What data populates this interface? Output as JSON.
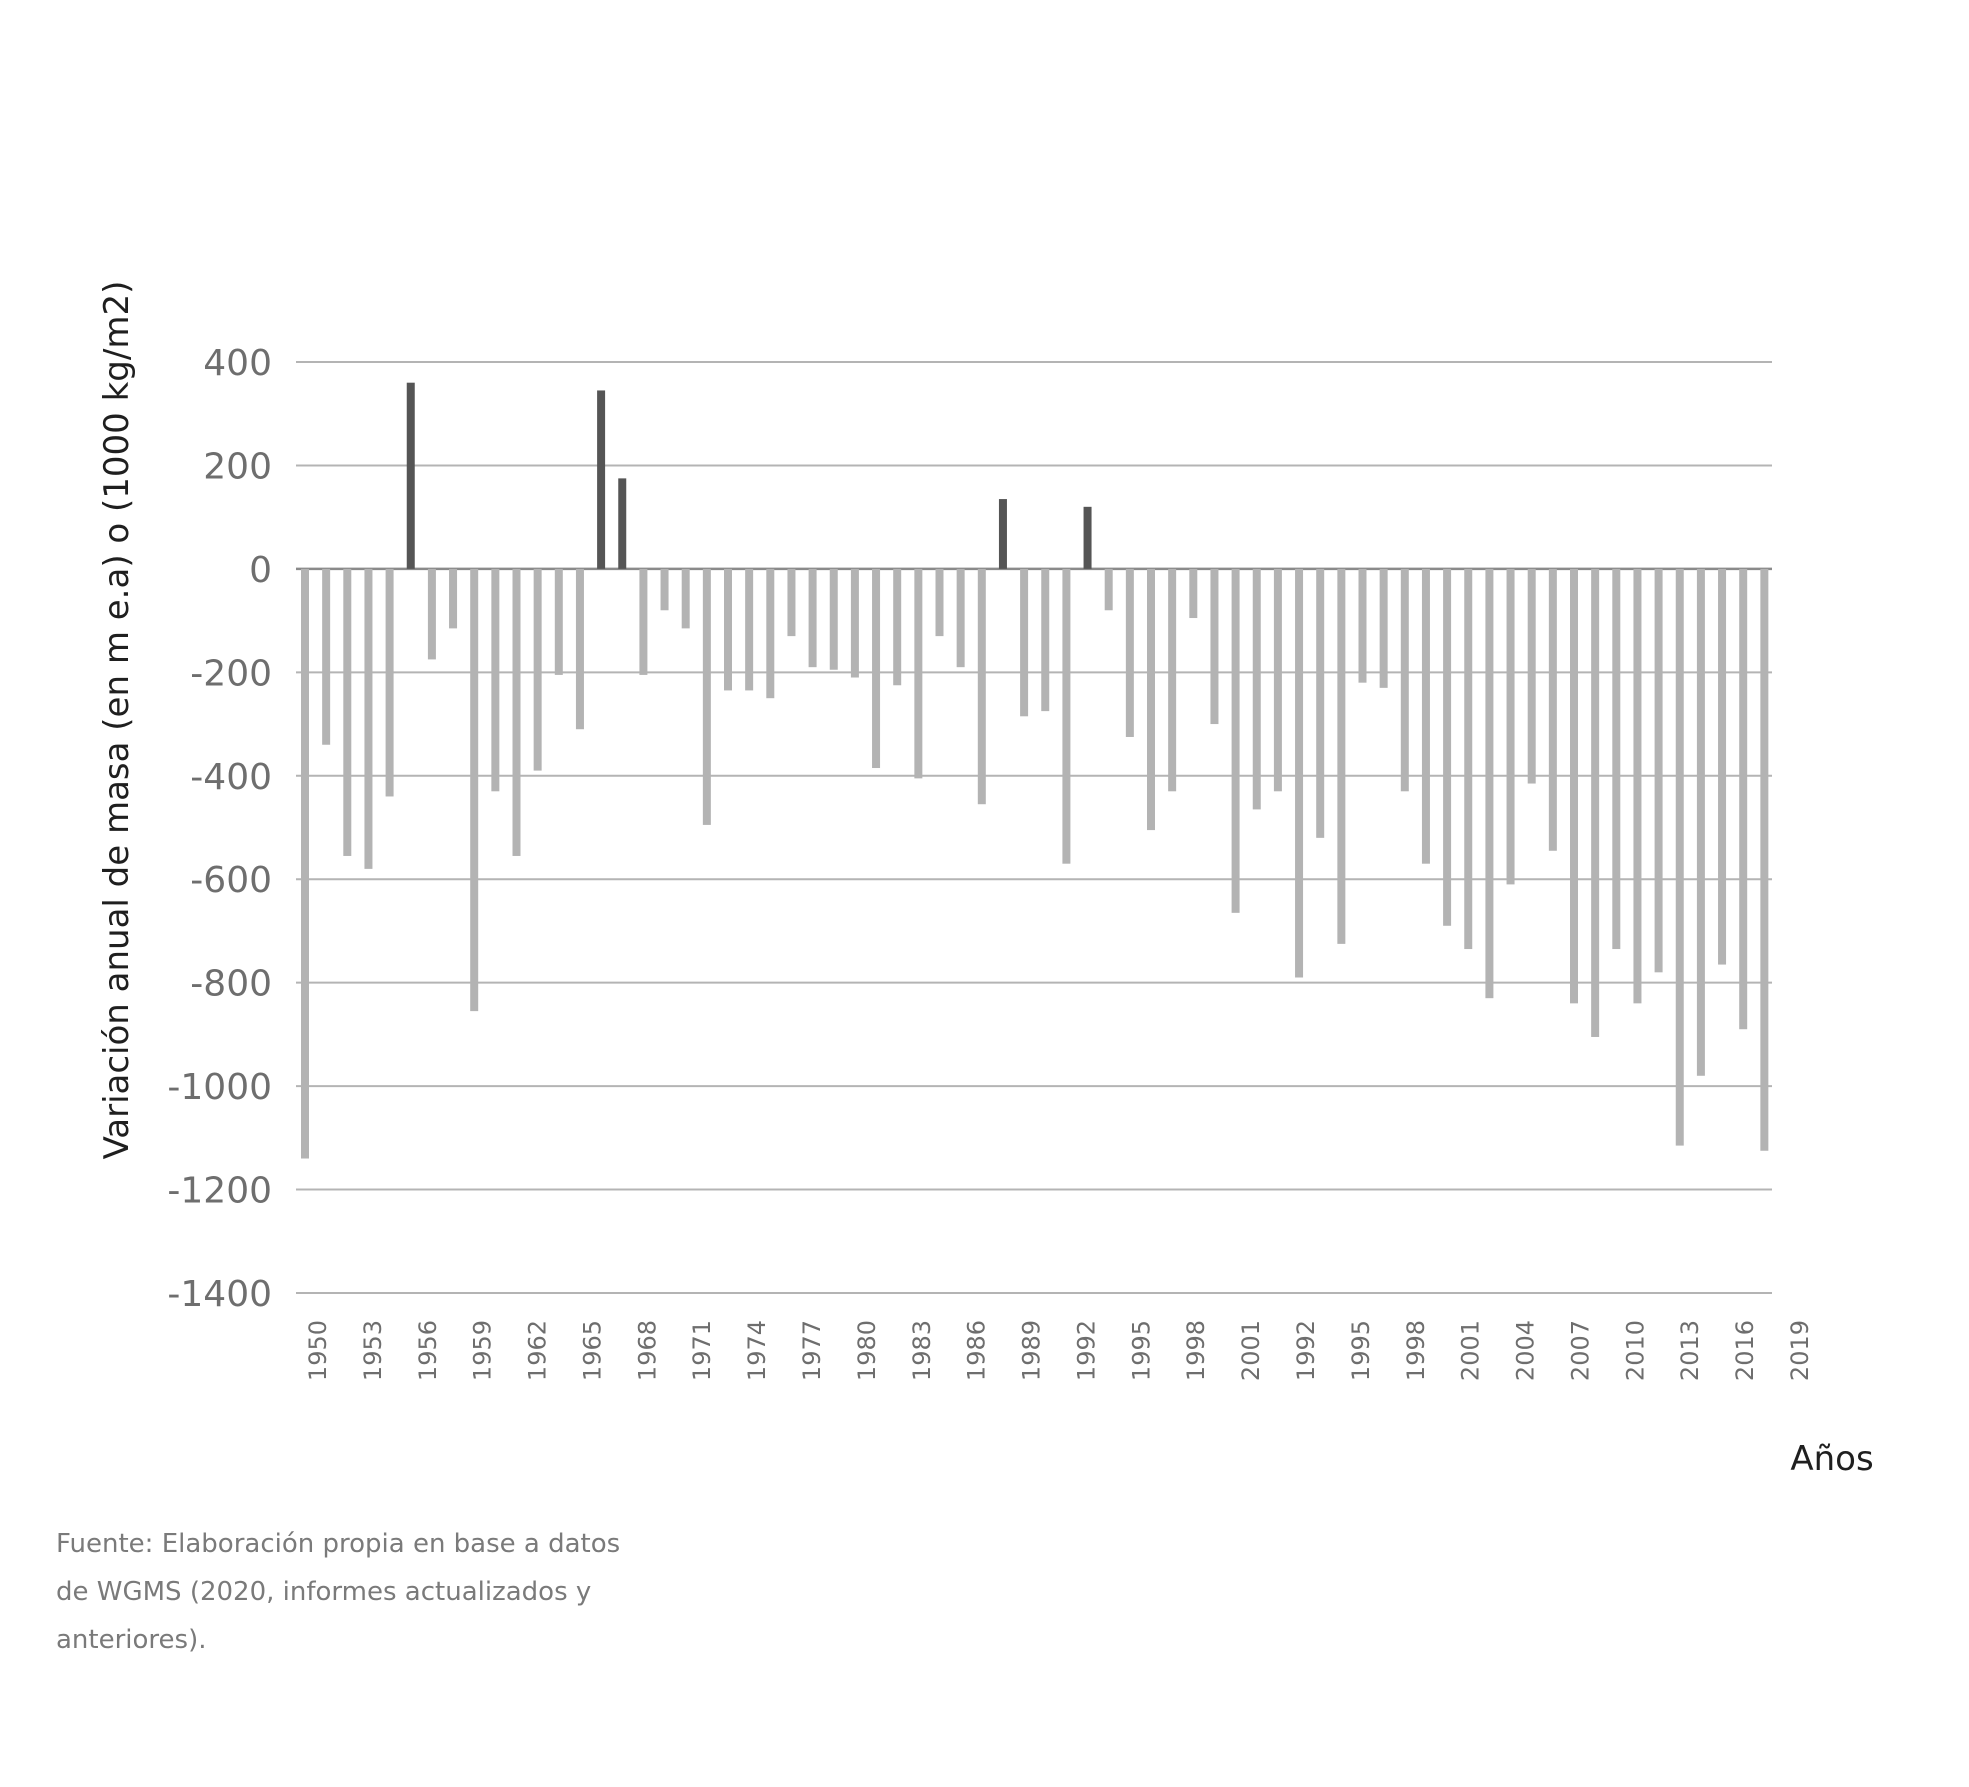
{
  "chart_data": {
    "type": "bar",
    "title": "",
    "xlabel": "Años",
    "ylabel": "Variación anual de masa (en m e.a) o (1000 kg/m2)",
    "ylim": [
      -1400,
      400
    ],
    "yticks": [
      400,
      200,
      0,
      -200,
      -400,
      -600,
      -800,
      -1000,
      -1200,
      -1400
    ],
    "grid": true,
    "x_tick_labels": [
      "1950",
      "1953",
      "1956",
      "1959",
      "1962",
      "1965",
      "1968",
      "1971",
      "1974",
      "1977",
      "1980",
      "1983",
      "1986",
      "1989",
      "1992",
      "1995",
      "1998",
      "2001",
      "1992",
      "1995",
      "1998",
      "2001",
      "2004",
      "2007",
      "2010",
      "2013",
      "2016",
      "2019"
    ],
    "values": [
      -1140,
      -340,
      -555,
      -580,
      -440,
      360,
      -175,
      -115,
      -855,
      -430,
      -555,
      -390,
      -205,
      -310,
      345,
      175,
      -205,
      -80,
      -115,
      -495,
      -235,
      -235,
      -250,
      -130,
      -190,
      -195,
      -210,
      -385,
      -225,
      -405,
      -130,
      -190,
      -455,
      135,
      -285,
      -275,
      -570,
      120,
      -80,
      -325,
      -505,
      -430,
      -95,
      -300,
      -665,
      -465,
      -430,
      -790,
      -520,
      -725,
      -220,
      -230,
      -430,
      -570,
      -690,
      -735,
      -830,
      -610,
      -415,
      -545,
      -840,
      -905,
      -735,
      -840,
      -780,
      -1115,
      -980,
      -765,
      -890,
      -1125
    ],
    "colors": {
      "negative": "#b3b3b3",
      "positive": "#555555",
      "grid": "#b4b4b4",
      "zero_line": "#8a8a8a"
    }
  },
  "footer": {
    "source_lines": [
      "Fuente: Elaboración propia en base a datos",
      "de WGMS (2020, informes actualizados y",
      "anteriores)."
    ]
  }
}
